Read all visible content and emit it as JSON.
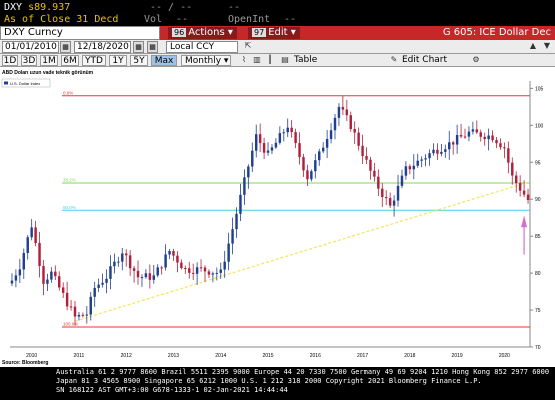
{
  "quote": {
    "ticker": "DXY",
    "last_prefix": "s",
    "last": "89.937",
    "change": "-- / --",
    "hi_placeholder": "--",
    "asof_label": "As of Close",
    "asof_date": "31 Decd",
    "vol_label": "Vol",
    "vol_value": "--",
    "openint_label": "OpenInt",
    "openint_value": "--"
  },
  "toolbar1": {
    "security": "DXY Curncy",
    "actions_num": "96",
    "actions_label": "Actions",
    "edit_num": "97",
    "edit_label": "Edit",
    "title": "G 605: ICE Dollar Dec"
  },
  "toolbar2": {
    "start_date": "01/01/2010",
    "end_date": "12/18/2020",
    "currency": "Local CCY"
  },
  "toolbar3": {
    "periods": [
      "1D",
      "3D",
      "1M",
      "6M",
      "YTD",
      "1Y",
      "5Y",
      "Max"
    ],
    "frequency": "Monthly",
    "table_label": "Table",
    "edit_chart_label": "Edit Chart"
  },
  "chart": {
    "title": "ABD Doları uzun vade teknik görünüm",
    "legend": "U.S. Dollar Index",
    "source": "Source: Bloomberg",
    "fib_labels": [
      "0.0%",
      "38.2%",
      "50.0%",
      "100.0%"
    ],
    "y_ticks": [
      70,
      75,
      80,
      85,
      90,
      95,
      100,
      105
    ],
    "x_ticks": [
      "2010",
      "2011",
      "2012",
      "2013",
      "2014",
      "2015",
      "2016",
      "2017",
      "2018",
      "2019",
      "2020"
    ],
    "colors": {
      "up": "#1f3f8f",
      "down": "#b0203a",
      "fib_red": "#e53935",
      "fib_green": "#7ed957",
      "fib_cyan": "#3fd3e0",
      "trend": "#f3e45a",
      "arrow": "#d070d0"
    }
  },
  "chart_data": {
    "type": "candlestick",
    "frequency": "monthly",
    "title": "ABD Doları uzun vade teknik görünüm",
    "series_name": "U.S. Dollar Index",
    "ylim": [
      70,
      106
    ],
    "xlim": [
      "2010-01",
      "2020-12"
    ],
    "fibonacci": {
      "0.0%": 104,
      "38.2%": 92.2,
      "50.0%": 88.5,
      "100.0%": 72.7
    },
    "trendline": {
      "from": [
        "2011-05",
        73.5
      ],
      "to": [
        "2020-12",
        92.3
      ]
    },
    "close_path": [
      [
        "2010-01",
        79
      ],
      [
        "2010-03",
        81
      ],
      [
        "2010-06",
        86.5
      ],
      [
        "2010-09",
        79
      ],
      [
        "2010-11",
        80
      ],
      [
        "2011-01",
        78
      ],
      [
        "2011-05",
        74
      ],
      [
        "2011-08",
        74.5
      ],
      [
        "2011-10",
        78
      ],
      [
        "2012-01",
        79.5
      ],
      [
        "2012-05",
        83
      ],
      [
        "2012-09",
        79.5
      ],
      [
        "2013-01",
        79.5
      ],
      [
        "2013-05",
        83
      ],
      [
        "2013-09",
        80.5
      ],
      [
        "2014-01",
        80.5
      ],
      [
        "2014-06",
        80
      ],
      [
        "2014-09",
        86
      ],
      [
        "2015-01",
        94.5
      ],
      [
        "2015-03",
        98.5
      ],
      [
        "2015-06",
        96
      ],
      [
        "2015-11",
        100
      ],
      [
        "2016-04",
        93
      ],
      [
        "2016-07",
        96
      ],
      [
        "2016-12",
        102.5
      ],
      [
        "2017-03",
        100
      ],
      [
        "2017-09",
        92.5
      ],
      [
        "2018-01",
        89
      ],
      [
        "2018-05",
        94
      ],
      [
        "2018-12",
        96.5
      ],
      [
        "2019-04",
        97.5
      ],
      [
        "2019-09",
        99
      ],
      [
        "2020-03",
        98.5
      ],
      [
        "2020-06",
        97
      ],
      [
        "2020-08",
        93
      ],
      [
        "2020-12",
        89.9
      ]
    ]
  },
  "footer": {
    "line1": "Australia 61 2 9777 8600 Brazil 5511 2395 9000 Europe 44 20 7330 7500 Germany 49 69 9204 1210 Hong Kong 852 2977 6000",
    "line2": "Japan 81 3 4565 8900         Singapore 65 6212 1000       U.S. 1 212 318 2000      Copyright 2021 Bloomberg Finance L.P.",
    "line3": "                                                         SN 168122 AST  GMT+3:00 G678-1333-1 02-Jan-2021 14:44:44"
  }
}
